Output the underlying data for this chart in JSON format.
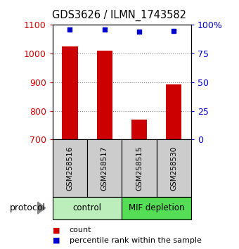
{
  "title": "GDS3626 / ILMN_1743582",
  "samples": [
    "GSM258516",
    "GSM258517",
    "GSM258515",
    "GSM258530"
  ],
  "counts": [
    1025,
    1010,
    770,
    893
  ],
  "percentile_ranks": [
    96,
    96,
    94,
    95
  ],
  "ylim_left": [
    700,
    1100
  ],
  "ylim_right": [
    0,
    100
  ],
  "yticks_left": [
    700,
    800,
    900,
    1000,
    1100
  ],
  "yticks_right": [
    0,
    25,
    50,
    75,
    100
  ],
  "yticklabels_right": [
    "0",
    "25",
    "50",
    "75",
    "100%"
  ],
  "bar_color": "#cc0000",
  "dot_color": "#0000cc",
  "bar_width": 0.45,
  "ctrl_color": "#bbeebb",
  "mif_color": "#55dd55",
  "xlabel_color_left": "#cc0000",
  "xlabel_color_right": "#0000cc",
  "grid_color": "#888888",
  "sample_box_color": "#cccccc",
  "protocol_label": "protocol"
}
